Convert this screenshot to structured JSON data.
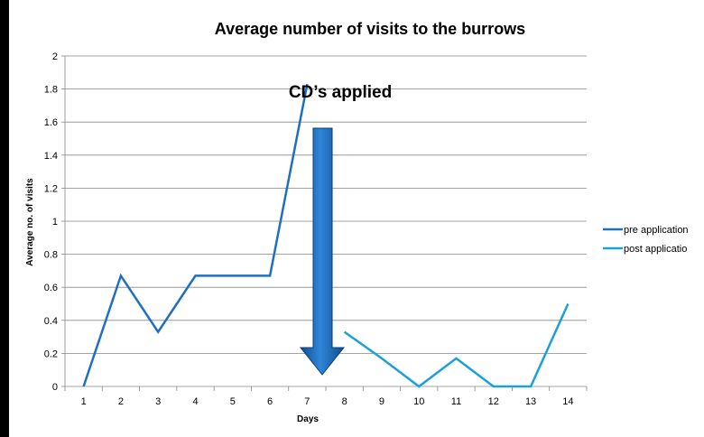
{
  "chart_data": {
    "type": "line",
    "title": "Average number of visits to the burrows",
    "xlabel": "Days",
    "ylabel": "Average no. of visits",
    "categories": [
      "1",
      "2",
      "3",
      "4",
      "5",
      "6",
      "7",
      "8",
      "9",
      "10",
      "11",
      "12",
      "13",
      "14"
    ],
    "ylim": [
      0,
      2
    ],
    "yticks": [
      "0",
      "0.2",
      "0.4",
      "0.6",
      "0.8",
      "1",
      "1.2",
      "1.4",
      "1.6",
      "1.8",
      "2"
    ],
    "grid": true,
    "legend_position": "right",
    "series": [
      {
        "name": "pre application",
        "color": "#1f6fc0",
        "values": [
          0,
          0.67,
          0.33,
          0.67,
          0.67,
          0.67,
          1.83,
          null,
          null,
          null,
          null,
          null,
          null,
          null
        ]
      },
      {
        "name": "post applicatio",
        "color": "#1ca0d8",
        "values": [
          null,
          null,
          null,
          null,
          null,
          null,
          null,
          0.33,
          0.17,
          0,
          0.17,
          0,
          0,
          0.5
        ]
      }
    ],
    "annotation": {
      "text": "CD’s applied",
      "arrow_color": "#1f6fc0",
      "arrow_direction": "down"
    }
  }
}
